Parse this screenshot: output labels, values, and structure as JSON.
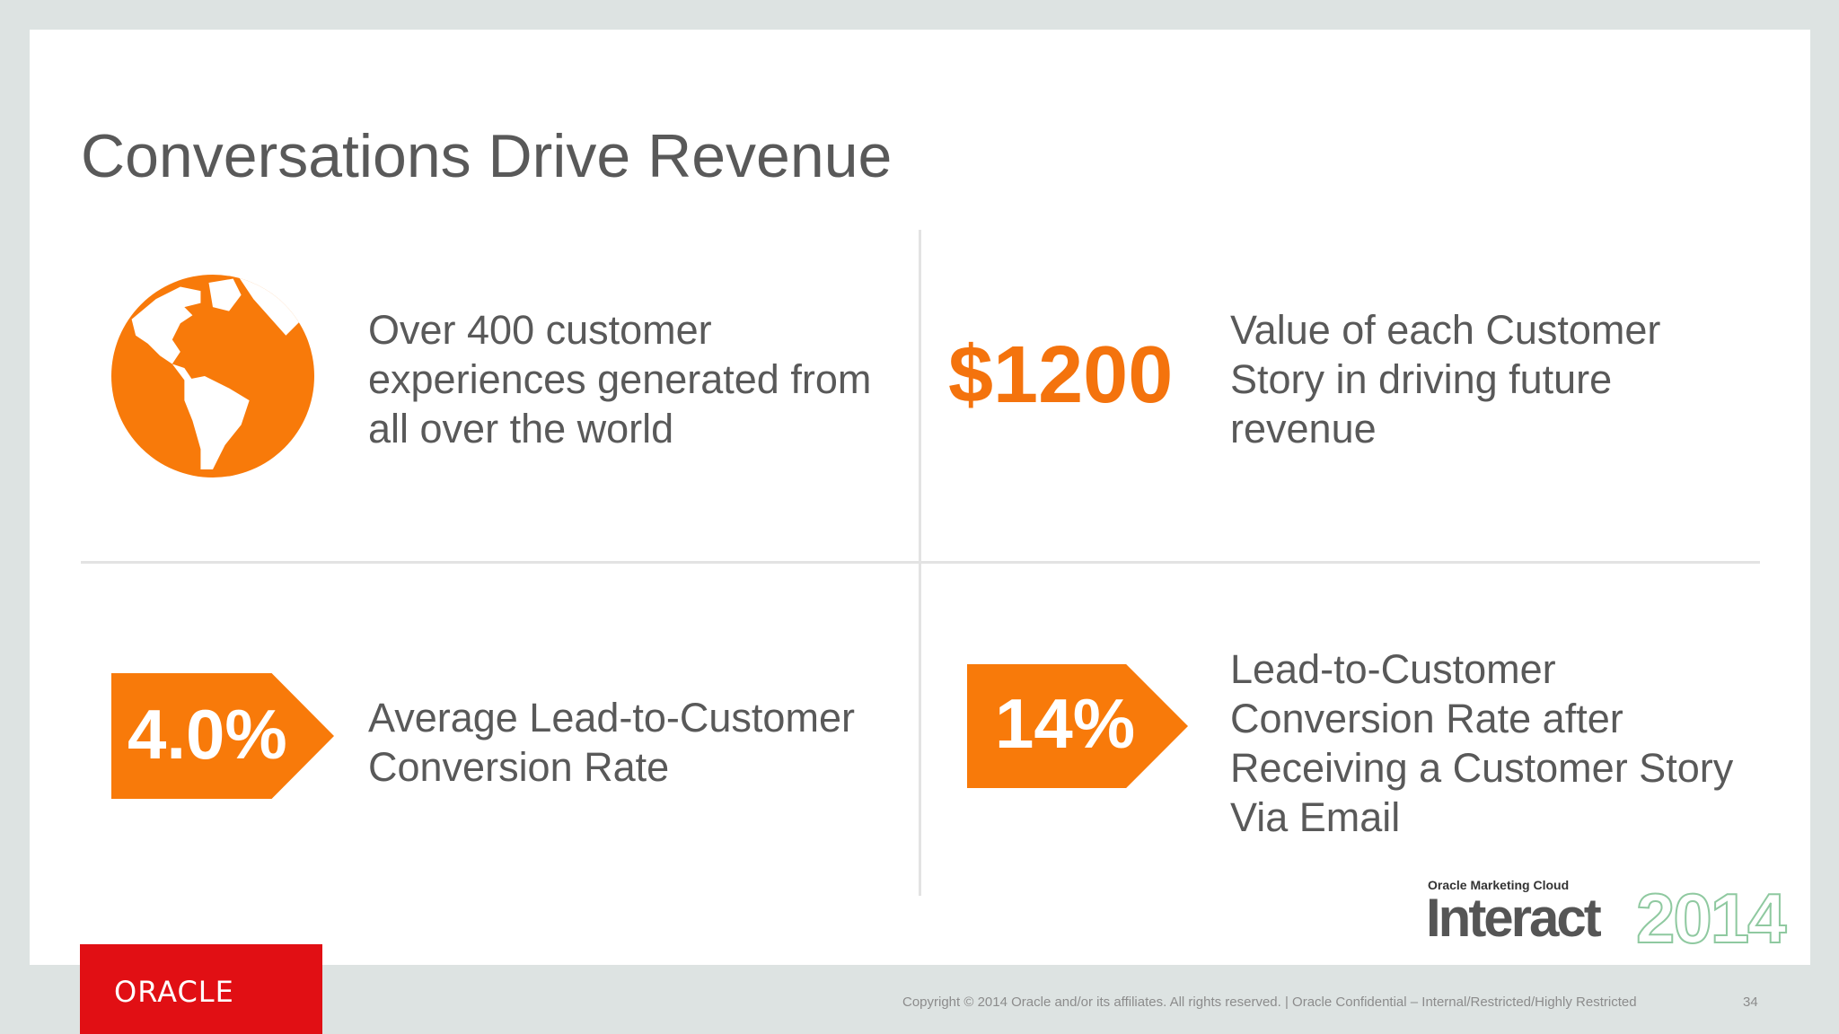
{
  "slide": {
    "title": "Conversations Drive Revenue",
    "colors": {
      "accent": "#f4730d",
      "oracle_red": "#e10f14",
      "text": "#595959"
    }
  },
  "quadrants": {
    "top_left": {
      "icon": "globe-icon",
      "lines": [
        "Over 400 customer",
        "experiences generated from",
        "all over the world"
      ]
    },
    "top_right": {
      "value": "$1200",
      "lines": [
        "Value of each Customer",
        "Story in driving future",
        "revenue"
      ]
    },
    "bottom_left": {
      "value": "4.0%",
      "lines": [
        "Average Lead-to-Customer",
        "Conversion Rate"
      ]
    },
    "bottom_right": {
      "value": "14%",
      "lines": [
        "Lead-to-Customer",
        "Conversion Rate after",
        "Receiving a Customer Story",
        "Via Email"
      ]
    }
  },
  "branding": {
    "interact_small": "Oracle Marketing Cloud",
    "interact_big": "Interact",
    "interact_year": "2014",
    "oracle_logo": "ORACLE"
  },
  "footer": {
    "copyright": "Copyright © 2014 Oracle and/or its affiliates. All rights reserved.  |  Oracle Confidential – Internal/Restricted/Highly Restricted",
    "page_number": "34"
  }
}
